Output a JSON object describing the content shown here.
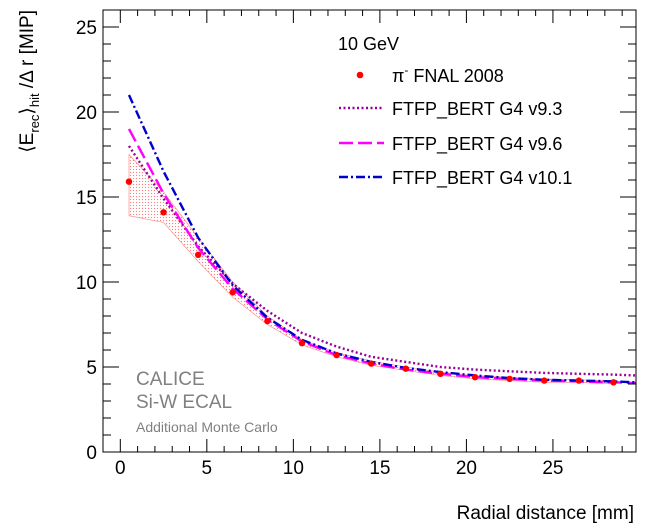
{
  "chart_data": {
    "type": "line",
    "title": "",
    "energy_label": "10 GeV",
    "xlabel": "Radial distance [mm]",
    "ylabel_parts": {
      "open": "⟨E",
      "sub1": "rec",
      "close": "⟩",
      "sub2": "hit",
      "rest": " /Δ r [MIP]"
    },
    "xlim": [
      -1,
      29.8
    ],
    "ylim": [
      0,
      26
    ],
    "x_ticks": [
      0,
      5,
      10,
      15,
      20,
      25
    ],
    "y_ticks": [
      0,
      5,
      10,
      15,
      20,
      25
    ],
    "x_tick_labels": [
      "0",
      "5",
      "10",
      "15",
      "20",
      "25"
    ],
    "y_tick_labels": [
      "0",
      "5",
      "10",
      "15",
      "20",
      "25"
    ],
    "grid": false,
    "legend_position": "top-right",
    "data_series": {
      "name_prefix": "π",
      "name_sup": "-",
      "name_rest": " FNAL 2008",
      "color": "#ff0000",
      "x": [
        0.5,
        2.5,
        4.5,
        6.5,
        8.5,
        10.5,
        12.5,
        14.5,
        16.5,
        18.5,
        20.5,
        22.5,
        24.5,
        26.5,
        28.5
      ],
      "y": [
        15.9,
        14.1,
        11.6,
        9.4,
        7.7,
        6.4,
        5.7,
        5.2,
        4.9,
        4.6,
        4.4,
        4.3,
        4.2,
        4.2,
        4.1
      ],
      "band_low": [
        13.9,
        13.5,
        11.2,
        9.1,
        7.5,
        6.3,
        5.6,
        5.1,
        4.8,
        4.5,
        4.3,
        4.2,
        4.1,
        4.1,
        4.0
      ],
      "band_high": [
        17.5,
        15.3,
        12.6,
        10.0,
        8.0,
        6.6,
        5.85,
        5.35,
        5.0,
        4.7,
        4.5,
        4.4,
        4.3,
        4.25,
        4.2
      ]
    },
    "series": [
      {
        "name": "FTFP_BERT G4 v9.3",
        "color": "#990099",
        "dash": "dotted",
        "x": [
          0.5,
          2.5,
          4.5,
          6.5,
          8.5,
          10.5,
          12.5,
          14.5,
          16.5,
          18.5,
          20.5,
          22.5,
          24.5,
          26.5,
          28.5,
          29.8
        ],
        "y": [
          18.0,
          14.9,
          12.1,
          9.9,
          8.3,
          7.0,
          6.2,
          5.6,
          5.3,
          5.0,
          4.85,
          4.75,
          4.65,
          4.6,
          4.55,
          4.5
        ]
      },
      {
        "name": "FTFP_BERT G4 v9.6",
        "color": "#ff00ff",
        "dash": "long-dash",
        "x": [
          0.5,
          2.5,
          4.5,
          6.5,
          8.5,
          10.5,
          12.5,
          14.5,
          16.5,
          18.5,
          20.5,
          22.5,
          24.5,
          26.5,
          28.5,
          29.8
        ],
        "y": [
          19.0,
          15.2,
          12.0,
          9.6,
          7.8,
          6.5,
          5.7,
          5.2,
          4.85,
          4.6,
          4.4,
          4.3,
          4.2,
          4.15,
          4.1,
          4.05
        ]
      },
      {
        "name": "FTFP_BERT G4 v10.1",
        "color": "#0000cc",
        "dash": "dash-dot",
        "x": [
          0.5,
          2.5,
          4.5,
          6.5,
          8.5,
          10.5,
          12.5,
          14.5,
          16.5,
          18.5,
          20.5,
          22.5,
          24.5,
          26.5,
          28.5,
          29.8
        ],
        "y": [
          21.0,
          16.5,
          12.6,
          9.8,
          7.9,
          6.6,
          5.8,
          5.3,
          4.95,
          4.7,
          4.5,
          4.35,
          4.25,
          4.2,
          4.15,
          4.1
        ]
      }
    ],
    "annotations": {
      "line1": "CALICE",
      "line2": "Si-W ECAL",
      "line3": "Additional Monte Carlo"
    }
  }
}
